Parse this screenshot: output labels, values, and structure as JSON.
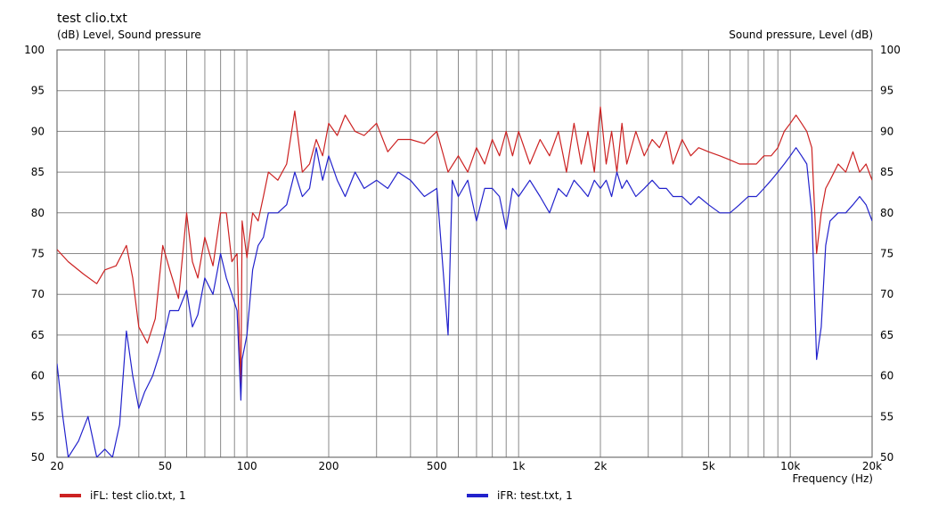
{
  "chart_data": {
    "type": "line",
    "title": "test clio.txt",
    "ylabel_left": "(dB)  Level, Sound pressure",
    "ylabel_right": "Sound pressure, Level  (dB)",
    "xlabel": "Frequency  (Hz)",
    "x_scale": "log",
    "xlim": [
      20,
      20000
    ],
    "ylim": [
      50,
      100
    ],
    "grid": true,
    "x_ticks": [
      {
        "value": 20,
        "label": "20"
      },
      {
        "value": 50,
        "label": "50"
      },
      {
        "value": 100,
        "label": "100"
      },
      {
        "value": 200,
        "label": "200"
      },
      {
        "value": 500,
        "label": "500"
      },
      {
        "value": 1000,
        "label": "1k"
      },
      {
        "value": 2000,
        "label": "2k"
      },
      {
        "value": 5000,
        "label": "5k"
      },
      {
        "value": 10000,
        "label": "10k"
      },
      {
        "value": 20000,
        "label": "20k"
      }
    ],
    "y_ticks": [
      {
        "value": 100,
        "label": "100"
      },
      {
        "value": 95,
        "label": "95"
      },
      {
        "value": 90,
        "label": "90"
      },
      {
        "value": 85,
        "label": "85"
      },
      {
        "value": 80,
        "label": "80"
      },
      {
        "value": 75,
        "label": "75"
      },
      {
        "value": 70,
        "label": "70"
      },
      {
        "value": 65,
        "label": "65"
      },
      {
        "value": 60,
        "label": "60"
      },
      {
        "value": 55,
        "label": "55"
      },
      {
        "value": 50,
        "label": "50"
      }
    ],
    "legend_position": "bottom",
    "series": [
      {
        "name": "iFL: test clio.txt, 1",
        "color": "#cc2222",
        "x": [
          20,
          22,
          25,
          28,
          30,
          33,
          36,
          38,
          40,
          43,
          46,
          49,
          52,
          56,
          60,
          63,
          66,
          70,
          75,
          80,
          84,
          88,
          92,
          95,
          96,
          100,
          105,
          110,
          115,
          120,
          130,
          140,
          150,
          160,
          170,
          180,
          190,
          200,
          215,
          230,
          250,
          270,
          300,
          330,
          360,
          400,
          450,
          500,
          550,
          600,
          650,
          700,
          750,
          800,
          850,
          900,
          950,
          1000,
          1100,
          1200,
          1300,
          1400,
          1500,
          1600,
          1700,
          1800,
          1900,
          2000,
          2100,
          2200,
          2300,
          2400,
          2500,
          2700,
          2900,
          3100,
          3300,
          3500,
          3700,
          4000,
          4300,
          4600,
          5000,
          5500,
          6000,
          6500,
          7000,
          7500,
          8000,
          8500,
          9000,
          9500,
          10000,
          10500,
          11000,
          11500,
          12000,
          12500,
          13000,
          13500,
          14000,
          15000,
          16000,
          17000,
          18000,
          19000,
          20000
        ],
        "y": [
          75.5,
          74,
          72.5,
          71.3,
          73,
          73.5,
          76,
          72,
          66,
          64,
          67,
          76,
          73,
          69.5,
          80,
          74,
          72,
          77,
          73.5,
          80,
          80,
          74,
          75,
          58,
          79,
          74.5,
          80,
          79,
          82,
          85,
          84,
          86,
          92.5,
          85,
          86,
          89,
          87,
          91,
          89.5,
          92,
          90,
          89.5,
          91,
          87.5,
          89,
          89,
          88.5,
          90,
          85,
          87,
          85,
          88,
          86,
          89,
          87,
          90,
          87,
          90,
          86,
          89,
          87,
          90,
          85,
          91,
          86,
          90,
          85,
          93,
          86,
          90,
          85,
          91,
          86,
          90,
          87,
          89,
          88,
          90,
          86,
          89,
          87,
          88,
          87.5,
          87,
          86.5,
          86,
          86,
          86,
          87,
          87,
          88,
          90,
          91,
          92,
          91,
          90,
          88,
          75,
          80,
          83,
          84,
          86,
          85,
          87.5,
          85,
          86,
          84
        ]
      },
      {
        "name": "iFR: test.txt, 1",
        "color": "#2222cc",
        "x": [
          20,
          21,
          22,
          24,
          26,
          28,
          30,
          32,
          34,
          36,
          38,
          40,
          42,
          45,
          48,
          52,
          56,
          60,
          63,
          66,
          70,
          75,
          80,
          84,
          88,
          92,
          95,
          96,
          100,
          105,
          110,
          115,
          120,
          130,
          140,
          150,
          160,
          170,
          180,
          190,
          200,
          215,
          230,
          250,
          270,
          300,
          330,
          360,
          400,
          450,
          500,
          550,
          570,
          600,
          650,
          700,
          750,
          800,
          850,
          900,
          950,
          1000,
          1100,
          1200,
          1300,
          1400,
          1500,
          1600,
          1700,
          1800,
          1900,
          2000,
          2100,
          2200,
          2300,
          2400,
          2500,
          2700,
          2900,
          3100,
          3300,
          3500,
          3700,
          4000,
          4300,
          4600,
          5000,
          5500,
          6000,
          6500,
          7000,
          7500,
          8000,
          8500,
          9000,
          9500,
          10000,
          10500,
          11000,
          11500,
          12000,
          12500,
          13000,
          13500,
          14000,
          15000,
          16000,
          17000,
          18000,
          19000,
          20000
        ],
        "y": [
          61.5,
          55,
          50,
          52,
          55,
          50,
          51,
          50,
          54,
          65.5,
          60,
          56,
          58,
          60,
          63,
          68,
          68,
          70.5,
          66,
          67.5,
          72,
          70,
          75,
          72,
          70,
          68,
          57,
          62,
          65,
          73,
          76,
          77,
          80,
          80,
          81,
          85,
          82,
          83,
          88,
          84,
          87,
          84,
          82,
          85,
          83,
          84,
          83,
          85,
          84,
          82,
          83,
          65,
          84,
          82,
          84,
          79,
          83,
          83,
          82,
          78,
          83,
          82,
          84,
          82,
          80,
          83,
          82,
          84,
          83,
          82,
          84,
          83,
          84,
          82,
          85,
          83,
          84,
          82,
          83,
          84,
          83,
          83,
          82,
          82,
          81,
          82,
          81,
          80,
          80,
          81,
          82,
          82,
          83,
          84,
          85,
          86,
          87,
          88,
          87,
          86,
          80,
          62,
          66,
          76,
          79,
          80,
          80,
          81,
          82,
          81,
          79
        ]
      }
    ]
  }
}
